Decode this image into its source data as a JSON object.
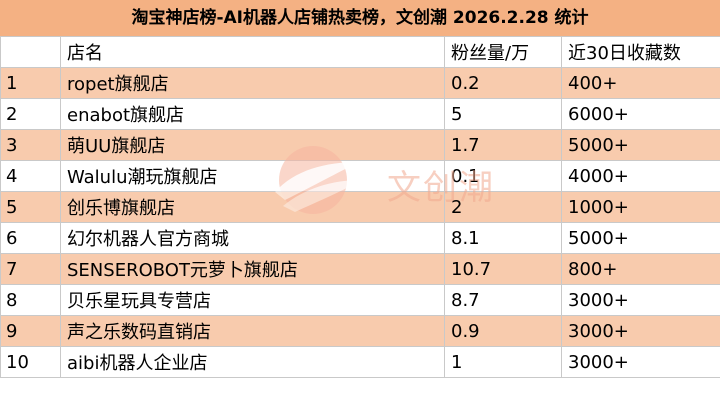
{
  "title": "淘宝神店榜-AI机器人店铺热卖榜，文创潮 2026.2.28 统计",
  "columns": [
    "",
    "店名",
    "粉丝量/万",
    "近30日收藏数"
  ],
  "rows": [
    {
      "rank": "1",
      "name": "ropet旗舰店",
      "fans": "0.2",
      "favorites": "400+"
    },
    {
      "rank": "2",
      "name": "enabot旗舰店",
      "fans": "5",
      "favorites": "6000+"
    },
    {
      "rank": "3",
      "name": "萌UU旗舰店",
      "fans": "1.7",
      "favorites": "5000+"
    },
    {
      "rank": "4",
      "name": "Walulu潮玩旗舰店",
      "fans": "0.1",
      "favorites": "4000+"
    },
    {
      "rank": "5",
      "name": "创乐博旗舰店",
      "fans": "2",
      "favorites": "1000+"
    },
    {
      "rank": "6",
      "name": "幻尔机器人官方商城",
      "fans": "8.1",
      "favorites": "5000+"
    },
    {
      "rank": "7",
      "name": "SENSEROBOT元萝卜旗舰店",
      "fans": "10.7",
      "favorites": "800+"
    },
    {
      "rank": "8",
      "name": "贝乐星玩具专营店",
      "fans": "8.7",
      "favorites": "3000+"
    },
    {
      "rank": "9",
      "name": "声之乐数码直销店",
      "fans": "0.9",
      "favorites": "3000+"
    },
    {
      "rank": "10",
      "name": "aibi机器人企业店",
      "fans": "1",
      "favorites": "3000+"
    }
  ],
  "watermark": {
    "text": "文创潮",
    "logo": "wenchuangchao-logo"
  },
  "colors": {
    "header_fill": "#f4b183",
    "band_fill": "#f8cbad",
    "grid": "#c9c9c9"
  }
}
